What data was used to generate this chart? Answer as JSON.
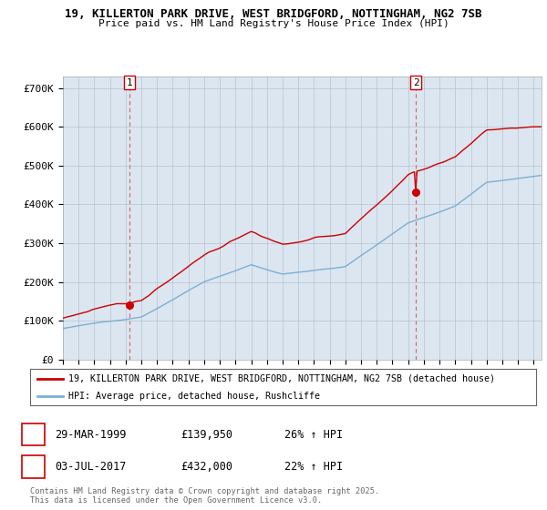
{
  "title1": "19, KILLERTON PARK DRIVE, WEST BRIDGFORD, NOTTINGHAM, NG2 7SB",
  "title2": "Price paid vs. HM Land Registry's House Price Index (HPI)",
  "legend_label_red": "19, KILLERTON PARK DRIVE, WEST BRIDGFORD, NOTTINGHAM, NG2 7SB (detached house)",
  "legend_label_blue": "HPI: Average price, detached house, Rushcliffe",
  "sale1_date": "29-MAR-1999",
  "sale1_price": "£139,950",
  "sale1_hpi": "26% ↑ HPI",
  "sale2_date": "03-JUL-2017",
  "sale2_price": "£432,000",
  "sale2_hpi": "22% ↑ HPI",
  "footnote": "Contains HM Land Registry data © Crown copyright and database right 2025.\nThis data is licensed under the Open Government Licence v3.0.",
  "background_color": "#ffffff",
  "chart_bg_color": "#dce6f0",
  "red_color": "#cc0000",
  "blue_color": "#7bafd4",
  "ylim_min": 0,
  "ylim_max": 730000,
  "yticks": [
    0,
    100000,
    200000,
    300000,
    400000,
    500000,
    600000,
    700000
  ],
  "ytick_labels": [
    "£0",
    "£100K",
    "£200K",
    "£300K",
    "£400K",
    "£500K",
    "£600K",
    "£700K"
  ],
  "sale1_x": 1999.24,
  "sale1_y": 139950,
  "sale2_x": 2017.5,
  "sale2_y": 432000,
  "vline1_x": 1999.24,
  "vline2_x": 2017.5,
  "xmin": 1995.0,
  "xmax": 2025.5
}
